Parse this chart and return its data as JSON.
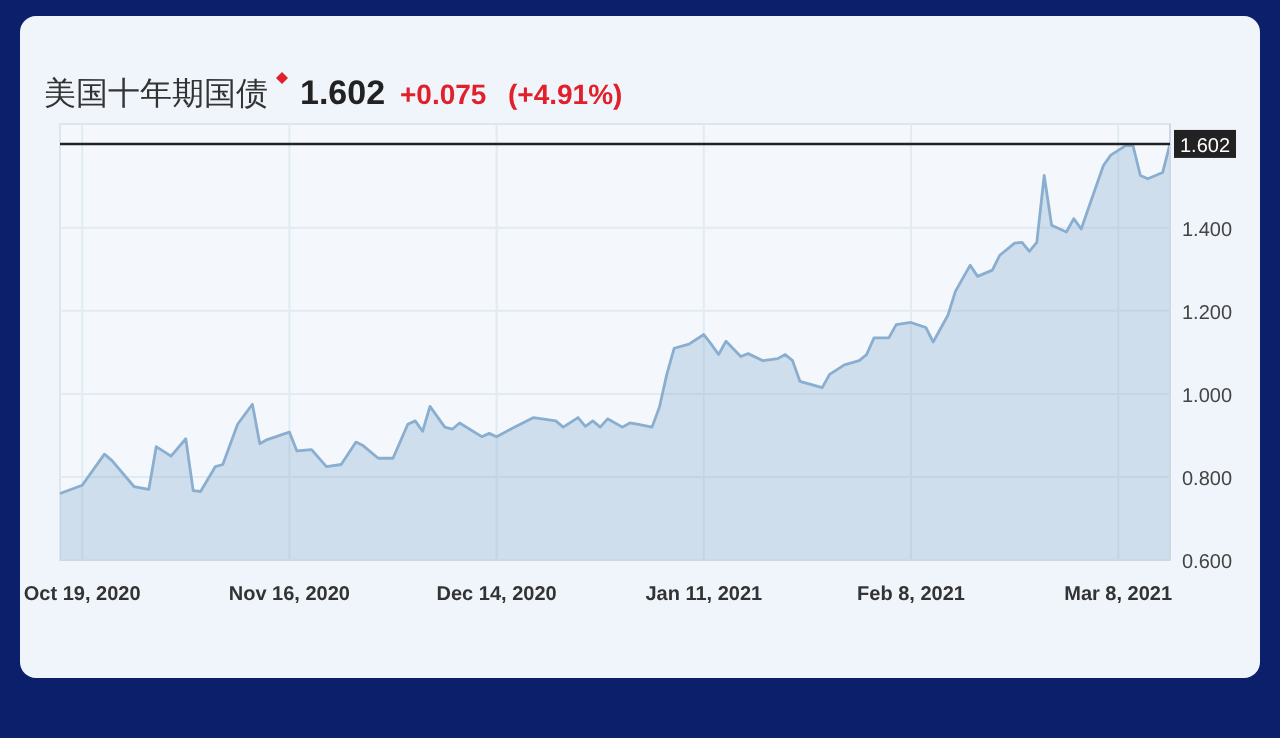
{
  "chart_data": {
    "type": "area",
    "title": "美国十年期国债",
    "annotations": [
      "1.602",
      "+0.075",
      "(+4.91%)"
    ],
    "x": [
      "2020-10-16",
      "2020-10-19",
      "2020-10-22",
      "2020-10-23",
      "2020-10-26",
      "2020-10-28",
      "2020-10-29",
      "2020-10-31",
      "2020-11-02",
      "2020-11-03",
      "2020-11-04",
      "2020-11-06",
      "2020-11-07",
      "2020-11-09",
      "2020-11-11",
      "2020-11-12",
      "2020-11-13",
      "2020-11-16",
      "2020-11-17",
      "2020-11-19",
      "2020-11-21",
      "2020-11-23",
      "2020-11-25",
      "2020-11-26",
      "2020-11-28",
      "2020-11-30",
      "2020-12-02",
      "2020-12-03",
      "2020-12-04",
      "2020-12-05",
      "2020-12-07",
      "2020-12-08",
      "2020-12-09",
      "2020-12-12",
      "2020-12-13",
      "2020-12-14",
      "2020-12-16",
      "2020-12-19",
      "2020-12-22",
      "2020-12-23",
      "2020-12-25",
      "2020-12-26",
      "2020-12-27",
      "2020-12-28",
      "2020-12-29",
      "2020-12-31",
      "2021-01-01",
      "2021-01-02",
      "2021-01-04",
      "2021-01-05",
      "2021-01-06",
      "2021-01-07",
      "2021-01-09",
      "2021-01-11",
      "2021-01-12",
      "2021-01-13",
      "2021-01-14",
      "2021-01-16",
      "2021-01-17",
      "2021-01-19",
      "2021-01-21",
      "2021-01-22",
      "2021-01-23",
      "2021-01-24",
      "2021-01-27",
      "2021-01-28",
      "2021-01-30",
      "2021-02-01",
      "2021-02-02",
      "2021-02-03",
      "2021-02-05",
      "2021-02-06",
      "2021-02-08",
      "2021-02-10",
      "2021-02-11",
      "2021-02-13",
      "2021-02-14",
      "2021-02-16",
      "2021-02-17",
      "2021-02-19",
      "2021-02-20",
      "2021-02-22",
      "2021-02-23",
      "2021-02-24",
      "2021-02-25",
      "2021-02-26",
      "2021-02-27",
      "2021-03-01",
      "2021-03-02",
      "2021-03-03",
      "2021-03-06",
      "2021-03-07",
      "2021-03-09",
      "2021-03-10",
      "2021-03-11",
      "2021-03-12",
      "2021-03-14",
      "2021-03-15"
    ],
    "series": [
      {
        "color": "#8aaecf",
        "values": [
          0.76,
          0.78,
          0.855,
          0.84,
          0.777,
          0.77,
          0.873,
          0.85,
          0.892,
          0.767,
          0.765,
          0.825,
          0.83,
          0.927,
          0.975,
          0.88,
          0.89,
          0.908,
          0.863,
          0.866,
          0.825,
          0.83,
          0.884,
          0.875,
          0.845,
          0.845,
          0.927,
          0.935,
          0.91,
          0.97,
          0.92,
          0.915,
          0.93,
          0.897,
          0.905,
          0.897,
          0.916,
          0.943,
          0.935,
          0.92,
          0.943,
          0.922,
          0.935,
          0.92,
          0.94,
          0.92,
          0.93,
          0.927,
          0.92,
          0.968,
          1.047,
          1.11,
          1.12,
          1.143,
          1.12,
          1.095,
          1.127,
          1.09,
          1.097,
          1.08,
          1.085,
          1.095,
          1.08,
          1.03,
          1.015,
          1.047,
          1.07,
          1.08,
          1.095,
          1.135,
          1.135,
          1.167,
          1.172,
          1.16,
          1.125,
          1.19,
          1.247,
          1.31,
          1.283,
          1.298,
          1.334,
          1.363,
          1.365,
          1.343,
          1.365,
          1.526,
          1.406,
          1.39,
          1.422,
          1.397,
          1.55,
          1.575,
          1.598,
          1.598,
          1.526,
          1.518,
          1.533,
          1.602
        ]
      }
    ],
    "xlim": [
      "2020-10-16",
      "2021-03-15"
    ],
    "xticks": [
      {
        "value": "2020-10-19",
        "label": "Oct 19, 2020"
      },
      {
        "value": "2020-11-16",
        "label": "Nov 16, 2020"
      },
      {
        "value": "2020-12-14",
        "label": "Dec 14, 2020"
      },
      {
        "value": "2021-01-11",
        "label": "Jan 11, 2021"
      },
      {
        "value": "2021-02-08",
        "label": "Feb 8, 2021"
      },
      {
        "value": "2021-03-08",
        "label": "Mar 8, 2021"
      }
    ],
    "ylim": [
      0.6,
      1.65
    ],
    "yticks": [
      {
        "value": 0.6,
        "label": "0.600"
      },
      {
        "value": 0.8,
        "label": "0.800"
      },
      {
        "value": 1.0,
        "label": "1.000"
      },
      {
        "value": 1.2,
        "label": "1.200"
      },
      {
        "value": 1.4,
        "label": "1.400"
      }
    ],
    "ref_lines": [
      {
        "axis": "y",
        "value": 1.602,
        "label": "1.602",
        "color": "#222222"
      }
    ],
    "grid": true
  }
}
